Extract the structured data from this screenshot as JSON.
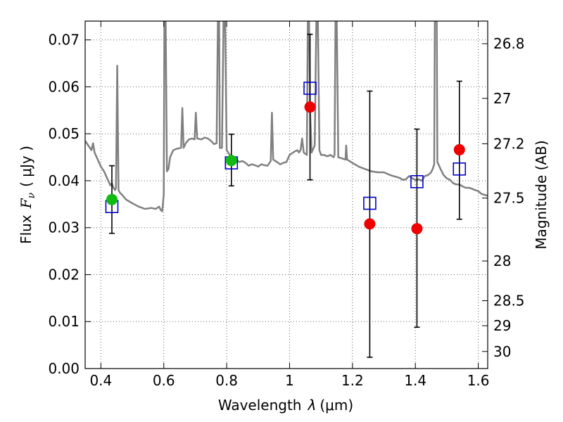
{
  "chart_data": {
    "type": "scatter",
    "xlabel_text": "Wavelength",
    "xlabel_sym": "λ",
    "xlabel_unit": "(μm)",
    "ylabel_text": "Flux",
    "ylabel_sym": "F",
    "ylabel_sub": "ν",
    "ylabel_unit": "( μJy )",
    "y2label": "Magnitude (AB)",
    "xlim": [
      0.35,
      1.63
    ],
    "ylim": [
      0.0,
      0.074
    ],
    "grid": true,
    "x_ticks": [
      "0.4",
      "0.6",
      "0.8",
      "1",
      "1.2",
      "1.4",
      "1.6"
    ],
    "x_tick_values": [
      0.4,
      0.6,
      0.8,
      1.0,
      1.2,
      1.4,
      1.6
    ],
    "y_ticks": [
      "0.00",
      "0.01",
      "0.02",
      "0.03",
      "0.04",
      "0.05",
      "0.06",
      "0.07"
    ],
    "y_tick_values": [
      0.0,
      0.01,
      0.02,
      0.03,
      0.04,
      0.05,
      0.06,
      0.07
    ],
    "y2_ticks": [
      "26.8",
      "27",
      "27.2",
      "27.5",
      "28",
      "28.5",
      "29",
      "30"
    ],
    "y2_tick_values": [
      26.8,
      27.0,
      27.2,
      27.5,
      28.0,
      28.5,
      29.0,
      30.0
    ],
    "colors": {
      "spectrum": "#808080",
      "model_marker": "#0000cc",
      "observed_red": "#ee0000",
      "observed_green": "#11bb11",
      "errorbar": "#000000",
      "grid": "#666666"
    },
    "spectrum": [
      [
        0.35,
        0.0485
      ],
      [
        0.36,
        0.0475
      ],
      [
        0.37,
        0.0465
      ],
      [
        0.375,
        0.048
      ],
      [
        0.38,
        0.046
      ],
      [
        0.39,
        0.0445
      ],
      [
        0.4,
        0.043
      ],
      [
        0.41,
        0.042
      ],
      [
        0.42,
        0.0405
      ],
      [
        0.43,
        0.039
      ],
      [
        0.435,
        0.0395
      ],
      [
        0.44,
        0.0385
      ],
      [
        0.445,
        0.038
      ],
      [
        0.448,
        0.0385
      ],
      [
        0.452,
        0.0645
      ],
      [
        0.456,
        0.038
      ],
      [
        0.46,
        0.0375
      ],
      [
        0.47,
        0.0368
      ],
      [
        0.48,
        0.036
      ],
      [
        0.5,
        0.0352
      ],
      [
        0.52,
        0.0345
      ],
      [
        0.54,
        0.034
      ],
      [
        0.56,
        0.0342
      ],
      [
        0.575,
        0.034
      ],
      [
        0.585,
        0.0345
      ],
      [
        0.59,
        0.0338
      ],
      [
        0.595,
        0.0335
      ],
      [
        0.6,
        0.037
      ],
      [
        0.602,
        0.074
      ],
      [
        0.606,
        0.074
      ],
      [
        0.61,
        0.042
      ],
      [
        0.615,
        0.0425
      ],
      [
        0.62,
        0.045
      ],
      [
        0.63,
        0.0465
      ],
      [
        0.64,
        0.0468
      ],
      [
        0.655,
        0.047
      ],
      [
        0.659,
        0.0555
      ],
      [
        0.663,
        0.047
      ],
      [
        0.67,
        0.048
      ],
      [
        0.68,
        0.0488
      ],
      [
        0.69,
        0.049
      ],
      [
        0.698,
        0.0488
      ],
      [
        0.702,
        0.0545
      ],
      [
        0.706,
        0.049
      ],
      [
        0.72,
        0.0488
      ],
      [
        0.73,
        0.0492
      ],
      [
        0.74,
        0.049
      ],
      [
        0.75,
        0.0485
      ],
      [
        0.76,
        0.0478
      ],
      [
        0.768,
        0.048
      ],
      [
        0.772,
        0.074
      ],
      [
        0.776,
        0.074
      ],
      [
        0.778,
        0.047
      ],
      [
        0.785,
        0.047
      ],
      [
        0.79,
        0.074
      ],
      [
        0.795,
        0.074
      ],
      [
        0.8,
        0.0465
      ],
      [
        0.81,
        0.0455
      ],
      [
        0.82,
        0.045
      ],
      [
        0.83,
        0.0445
      ],
      [
        0.84,
        0.044
      ],
      [
        0.85,
        0.0442
      ],
      [
        0.86,
        0.0438
      ],
      [
        0.87,
        0.0432
      ],
      [
        0.88,
        0.0435
      ],
      [
        0.89,
        0.0433
      ],
      [
        0.9,
        0.043
      ],
      [
        0.91,
        0.0435
      ],
      [
        0.92,
        0.0433
      ],
      [
        0.93,
        0.0432
      ],
      [
        0.94,
        0.0442
      ],
      [
        0.944,
        0.0545
      ],
      [
        0.948,
        0.0445
      ],
      [
        0.96,
        0.044
      ],
      [
        0.97,
        0.0435
      ],
      [
        0.98,
        0.0438
      ],
      [
        0.99,
        0.044
      ],
      [
        1.0,
        0.0455
      ],
      [
        1.015,
        0.0462
      ],
      [
        1.025,
        0.0465
      ],
      [
        1.03,
        0.046
      ],
      [
        1.035,
        0.0465
      ],
      [
        1.04,
        0.049
      ],
      [
        1.045,
        0.046
      ],
      [
        1.055,
        0.0455
      ],
      [
        1.058,
        0.074
      ],
      [
        1.062,
        0.074
      ],
      [
        1.065,
        0.0555
      ],
      [
        1.07,
        0.046
      ],
      [
        1.08,
        0.0475
      ],
      [
        1.085,
        0.074
      ],
      [
        1.09,
        0.074
      ],
      [
        1.095,
        0.0465
      ],
      [
        1.1,
        0.0455
      ],
      [
        1.11,
        0.0455
      ],
      [
        1.12,
        0.0452
      ],
      [
        1.13,
        0.0455
      ],
      [
        1.14,
        0.045
      ],
      [
        1.143,
        0.0455
      ],
      [
        1.146,
        0.074
      ],
      [
        1.15,
        0.074
      ],
      [
        1.155,
        0.045
      ],
      [
        1.165,
        0.0448
      ],
      [
        1.178,
        0.0445
      ],
      [
        1.18,
        0.0475
      ],
      [
        1.183,
        0.0445
      ],
      [
        1.2,
        0.0438
      ],
      [
        1.22,
        0.043
      ],
      [
        1.24,
        0.0425
      ],
      [
        1.26,
        0.042
      ],
      [
        1.28,
        0.0418
      ],
      [
        1.3,
        0.0418
      ],
      [
        1.31,
        0.0415
      ],
      [
        1.32,
        0.0412
      ],
      [
        1.33,
        0.041
      ],
      [
        1.34,
        0.0408
      ],
      [
        1.35,
        0.0406
      ],
      [
        1.36,
        0.0402
      ],
      [
        1.37,
        0.0403
      ],
      [
        1.38,
        0.041
      ],
      [
        1.39,
        0.0405
      ],
      [
        1.4,
        0.0402
      ],
      [
        1.41,
        0.0403
      ],
      [
        1.42,
        0.04
      ],
      [
        1.43,
        0.041
      ],
      [
        1.44,
        0.0412
      ],
      [
        1.45,
        0.0418
      ],
      [
        1.455,
        0.0425
      ],
      [
        1.46,
        0.0435
      ],
      [
        1.462,
        0.074
      ],
      [
        1.468,
        0.074
      ],
      [
        1.47,
        0.044
      ],
      [
        1.48,
        0.0425
      ],
      [
        1.49,
        0.0412
      ],
      [
        1.5,
        0.0405
      ],
      [
        1.51,
        0.0402
      ],
      [
        1.52,
        0.0395
      ],
      [
        1.53,
        0.0392
      ],
      [
        1.54,
        0.0392
      ],
      [
        1.55,
        0.0388
      ],
      [
        1.56,
        0.0385
      ],
      [
        1.57,
        0.0385
      ],
      [
        1.58,
        0.0383
      ],
      [
        1.59,
        0.038
      ],
      [
        1.6,
        0.0378
      ],
      [
        1.61,
        0.0372
      ],
      [
        1.62,
        0.037
      ],
      [
        1.63,
        0.0368
      ]
    ],
    "model_points": [
      {
        "x": 0.435,
        "y": 0.0345
      },
      {
        "x": 0.815,
        "y": 0.0438
      },
      {
        "x": 1.065,
        "y": 0.0597
      },
      {
        "x": 1.255,
        "y": 0.0352
      },
      {
        "x": 1.405,
        "y": 0.0398
      },
      {
        "x": 1.54,
        "y": 0.0425
      }
    ],
    "observed_points": [
      {
        "x": 0.435,
        "y": 0.036,
        "yerr_low": 0.0288,
        "yerr_high": 0.0432,
        "color": "green"
      },
      {
        "x": 0.815,
        "y": 0.0443,
        "yerr_low": 0.0389,
        "yerr_high": 0.0499,
        "color": "green"
      },
      {
        "x": 1.065,
        "y": 0.0557,
        "yerr_low": 0.0402,
        "yerr_high": 0.0712,
        "color": "red"
      },
      {
        "x": 1.255,
        "y": 0.0308,
        "yerr_low": 0.0024,
        "yerr_high": 0.0591,
        "color": "red"
      },
      {
        "x": 1.405,
        "y": 0.0298,
        "yerr_low": 0.0088,
        "yerr_high": 0.051,
        "color": "red"
      },
      {
        "x": 1.54,
        "y": 0.0466,
        "yerr_low": 0.0318,
        "yerr_high": 0.0612,
        "color": "red"
      }
    ]
  }
}
